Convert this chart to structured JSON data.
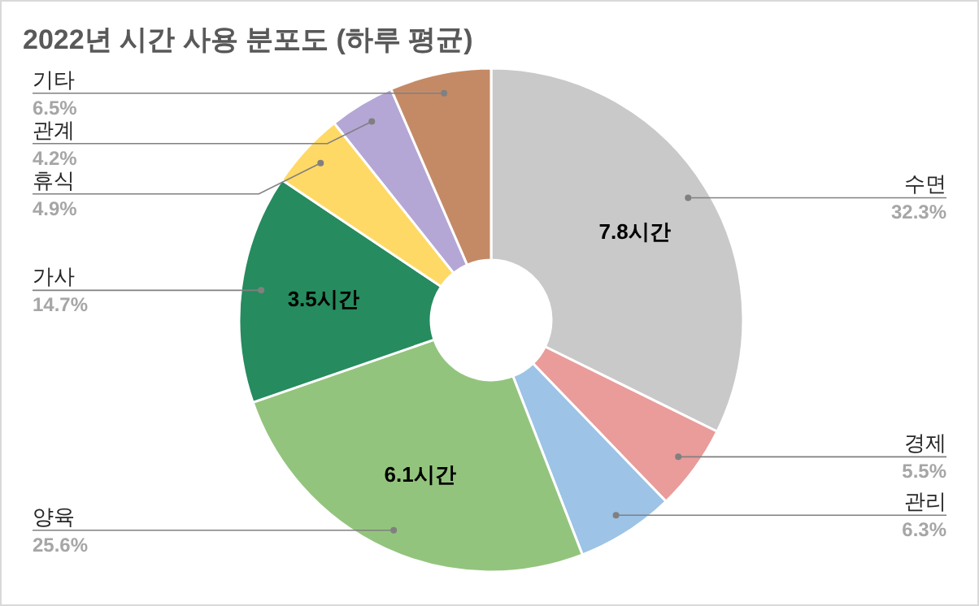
{
  "chart_data": {
    "type": "donut",
    "title": "2022년 시간 사용 분포도 (하루 평균)",
    "categories": [
      "수면",
      "경제",
      "관리",
      "양육",
      "가사",
      "휴식",
      "관계",
      "기타"
    ],
    "values": [
      32.3,
      5.5,
      6.3,
      25.6,
      14.7,
      4.9,
      4.2,
      6.5
    ],
    "value_labels": [
      "32.3%",
      "5.5%",
      "6.3%",
      "25.6%",
      "14.7%",
      "4.9%",
      "4.2%",
      "6.5%"
    ],
    "colors": [
      "#c9c9c9",
      "#e99c9a",
      "#9dc3e6",
      "#93c47d",
      "#268b5e",
      "#ffd966",
      "#b4a7d6",
      "#c48a66"
    ],
    "annotations": [
      {
        "text": "7.8시간",
        "x": "수면"
      },
      {
        "text": "6.1시간",
        "x": "양육"
      },
      {
        "text": "3.5시간",
        "x": "가사"
      }
    ]
  }
}
